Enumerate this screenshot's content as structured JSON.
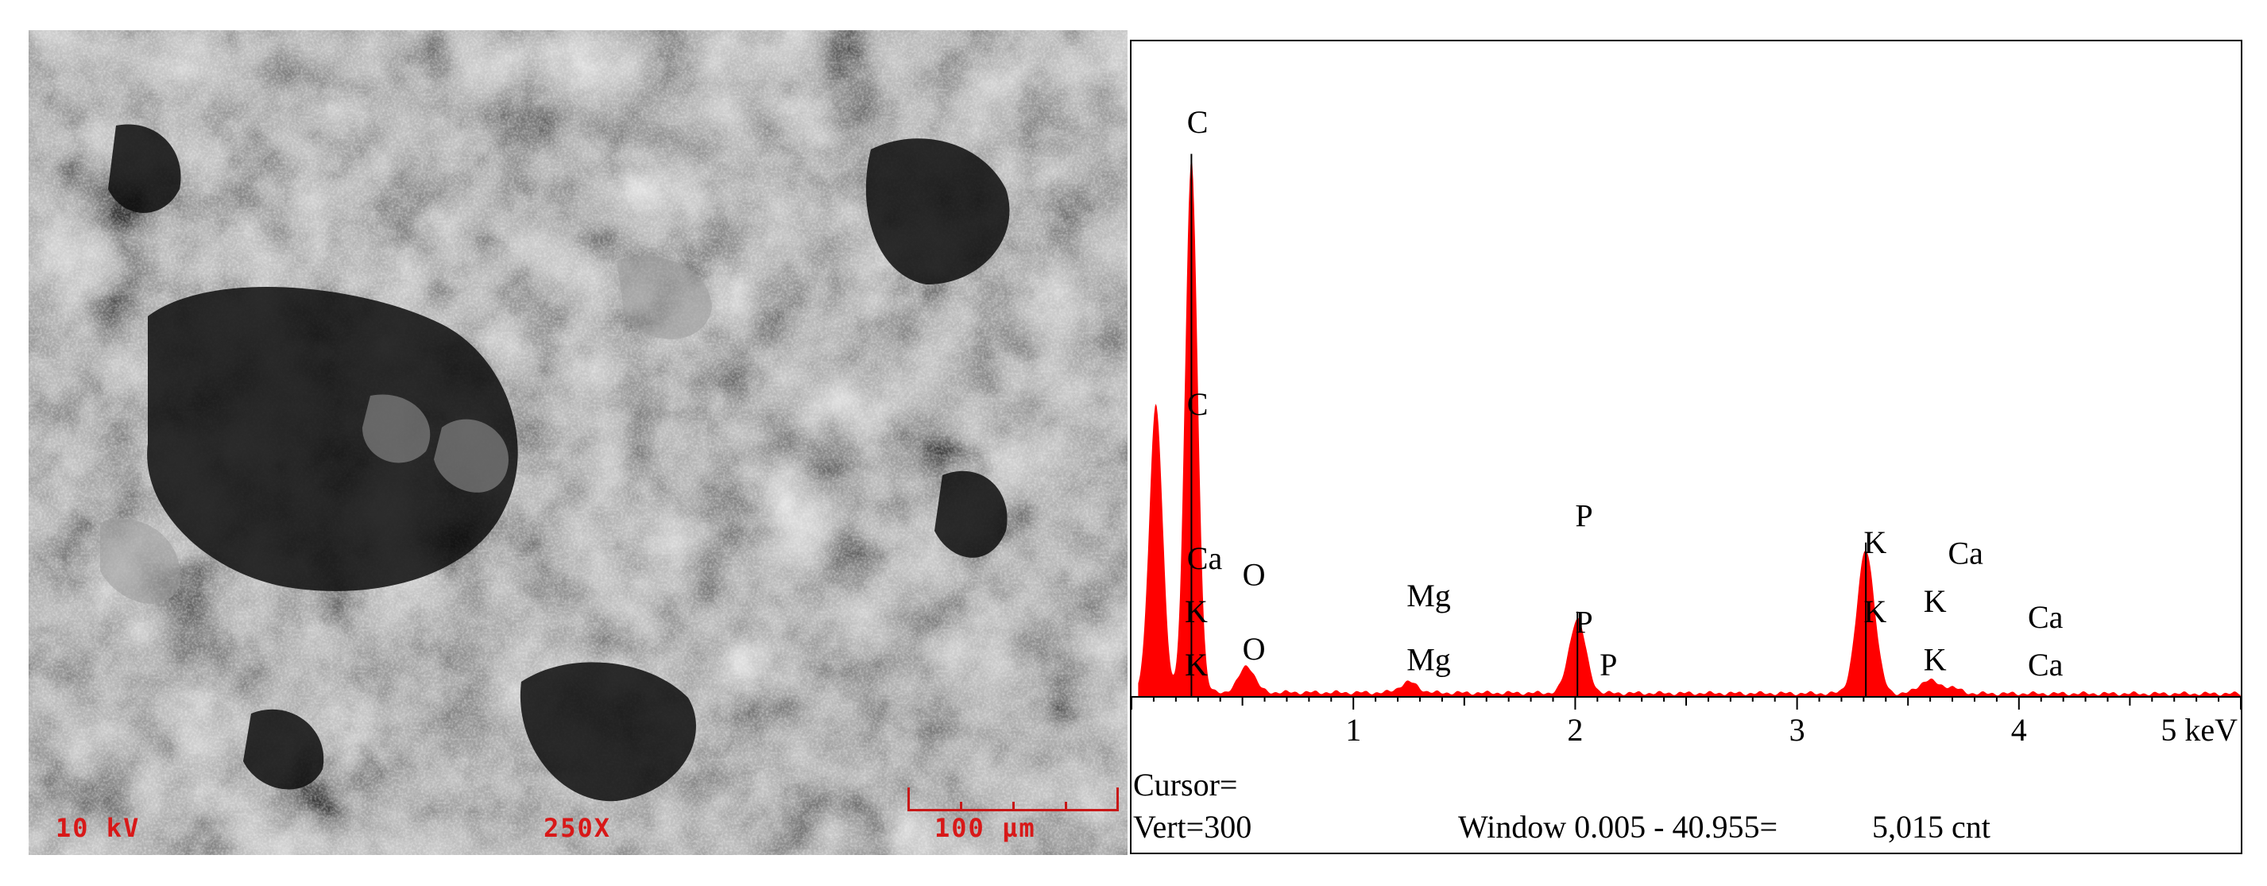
{
  "sem_image": {
    "voltage_label": "10 kV",
    "magnification_label": "250X",
    "scale_label": "100 µm"
  },
  "chart_data": {
    "type": "area",
    "xlabel": "",
    "ylabel": "",
    "x_unit": "keV",
    "xlim": [
      0,
      5
    ],
    "x_ticks": [
      "1",
      "2",
      "3",
      "4",
      "5 keV"
    ],
    "x_tick_values": [
      1,
      2,
      3,
      4,
      5
    ],
    "series_color": "#ff0000",
    "peaks": [
      {
        "center": 0.11,
        "height": 0.54,
        "width": 0.03
      },
      {
        "center": 0.27,
        "height": 1.0,
        "width": 0.028
      },
      {
        "center": 0.52,
        "height": 0.05,
        "width": 0.035
      },
      {
        "center": 1.25,
        "height": 0.02,
        "width": 0.04
      },
      {
        "center": 2.01,
        "height": 0.14,
        "width": 0.038
      },
      {
        "center": 3.31,
        "height": 0.27,
        "width": 0.04
      },
      {
        "center": 3.59,
        "height": 0.025,
        "width": 0.04
      },
      {
        "center": 3.69,
        "height": 0.012,
        "width": 0.04
      }
    ],
    "element_labels": [
      {
        "text": "C",
        "x": 0.25,
        "y": 1.06
      },
      {
        "text": "C",
        "x": 0.25,
        "y": 0.53
      },
      {
        "text": "Ca",
        "x": 0.25,
        "y": 0.24
      },
      {
        "text": "K",
        "x": 0.24,
        "y": 0.14
      },
      {
        "text": "K",
        "x": 0.24,
        "y": 0.04
      },
      {
        "text": "O",
        "x": 0.5,
        "y": 0.21
      },
      {
        "text": "O",
        "x": 0.5,
        "y": 0.07
      },
      {
        "text": "Mg",
        "x": 1.24,
        "y": 0.17
      },
      {
        "text": "Mg",
        "x": 1.24,
        "y": 0.05
      },
      {
        "text": "P",
        "x": 2.0,
        "y": 0.32
      },
      {
        "text": "P",
        "x": 2.0,
        "y": 0.12
      },
      {
        "text": "P",
        "x": 2.11,
        "y": 0.04
      },
      {
        "text": "K",
        "x": 3.3,
        "y": 0.27
      },
      {
        "text": "K",
        "x": 3.3,
        "y": 0.14
      },
      {
        "text": "Ca",
        "x": 3.68,
        "y": 0.25
      },
      {
        "text": "K",
        "x": 3.57,
        "y": 0.16
      },
      {
        "text": "K",
        "x": 3.57,
        "y": 0.05
      },
      {
        "text": "Ca",
        "x": 4.04,
        "y": 0.13
      },
      {
        "text": "Ca",
        "x": 4.04,
        "y": 0.04
      }
    ]
  },
  "info": {
    "cursor": "Cursor=",
    "vert": "Vert=300",
    "window": "Window 0.005 - 40.955=",
    "count": "5,015 cnt"
  }
}
